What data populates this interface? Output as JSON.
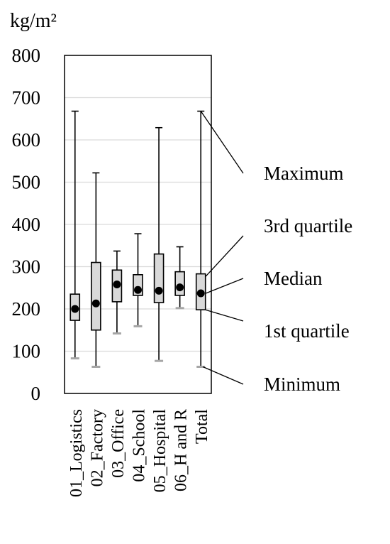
{
  "chart_data": {
    "type": "box",
    "unit_label": "kg/m²",
    "ylim": [
      0,
      800
    ],
    "y_ticks": [
      0,
      100,
      200,
      300,
      400,
      500,
      600,
      700,
      800
    ],
    "grid": true,
    "categories": [
      "01_Logistics",
      "02_Factory",
      "03_Office",
      "04_School",
      "05_Hospital",
      "06_H and R",
      "Total"
    ],
    "boxes": [
      {
        "category": "01_Logistics",
        "min": 83,
        "q1": 173,
        "median": 200,
        "q3": 235,
        "max": 668
      },
      {
        "category": "02_Factory",
        "min": 63,
        "q1": 150,
        "median": 213,
        "q3": 310,
        "max": 522
      },
      {
        "category": "03_Office",
        "min": 142,
        "q1": 217,
        "median": 258,
        "q3": 292,
        "max": 337
      },
      {
        "category": "04_School",
        "min": 159,
        "q1": 232,
        "median": 245,
        "q3": 281,
        "max": 378
      },
      {
        "category": "05_Hospital",
        "min": 77,
        "q1": 215,
        "median": 243,
        "q3": 330,
        "max": 629
      },
      {
        "category": "06_H and R",
        "min": 202,
        "q1": 232,
        "median": 251,
        "q3": 288,
        "max": 347
      },
      {
        "category": "Total",
        "min": 63,
        "q1": 198,
        "median": 237,
        "q3": 283,
        "max": 668
      }
    ],
    "annotations": [
      {
        "text": "Maximum",
        "points_to": "max"
      },
      {
        "text": "3rd quartile",
        "points_to": "q3"
      },
      {
        "text": "Median",
        "points_to": "median"
      },
      {
        "text": "1st quartile",
        "points_to": "q1"
      },
      {
        "text": "Minimum",
        "points_to": "min"
      }
    ],
    "colors": {
      "box_fill": "#d9d9d9",
      "box_stroke": "#000000",
      "median_marker": "#000000",
      "min_cap": "#a6a6a6",
      "grid": "#d9d9d9"
    }
  }
}
